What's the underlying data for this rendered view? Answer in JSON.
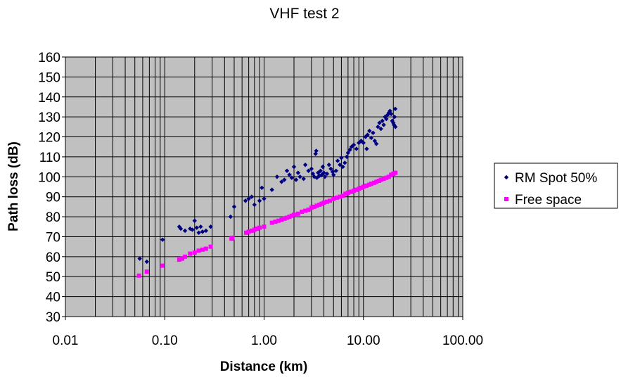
{
  "chart_data": {
    "type": "scatter",
    "title": "VHF test 2",
    "xlabel": "Distance (km)",
    "ylabel": "Path loss (dB)",
    "x_scale": "log",
    "xlim": [
      0.01,
      100
    ],
    "ylim": [
      30,
      160
    ],
    "x_ticks": [
      "0.01",
      "0.10",
      "1.00",
      "10.00",
      "100.00"
    ],
    "y_ticks": [
      "30",
      "40",
      "50",
      "60",
      "70",
      "80",
      "90",
      "100",
      "110",
      "120",
      "130",
      "140",
      "150",
      "160"
    ],
    "grid": true,
    "plot_background": "#c0c0c0",
    "legend_position": "right",
    "series": [
      {
        "name": "RM Spot 50%",
        "marker": "diamond",
        "color": "#000080",
        "points": [
          [
            0.056,
            59
          ],
          [
            0.066,
            57.5
          ],
          [
            0.095,
            68.5
          ],
          [
            0.14,
            75
          ],
          [
            0.145,
            74
          ],
          [
            0.16,
            73
          ],
          [
            0.18,
            74
          ],
          [
            0.19,
            73.5
          ],
          [
            0.2,
            78
          ],
          [
            0.21,
            74.5
          ],
          [
            0.22,
            72
          ],
          [
            0.23,
            75
          ],
          [
            0.24,
            72.5
          ],
          [
            0.26,
            73
          ],
          [
            0.29,
            75
          ],
          [
            0.46,
            80
          ],
          [
            0.5,
            85
          ],
          [
            0.65,
            88
          ],
          [
            0.7,
            89
          ],
          [
            0.75,
            90
          ],
          [
            0.8,
            86
          ],
          [
            0.9,
            88
          ],
          [
            0.95,
            94.5
          ],
          [
            1.0,
            89
          ],
          [
            1.2,
            93.5
          ],
          [
            1.35,
            100
          ],
          [
            1.5,
            97.5
          ],
          [
            1.6,
            98.5
          ],
          [
            1.7,
            103
          ],
          [
            1.8,
            101
          ],
          [
            1.9,
            99.5
          ],
          [
            2.0,
            105
          ],
          [
            2.1,
            98.5
          ],
          [
            2.2,
            102
          ],
          [
            2.3,
            100
          ],
          [
            2.5,
            99
          ],
          [
            2.6,
            106
          ],
          [
            2.8,
            103
          ],
          [
            3.0,
            104
          ],
          [
            3.1,
            101.5
          ],
          [
            3.2,
            100
          ],
          [
            3.3,
            111.5
          ],
          [
            3.35,
            113
          ],
          [
            3.4,
            99.5
          ],
          [
            3.5,
            102
          ],
          [
            3.6,
            100.5
          ],
          [
            3.7,
            103
          ],
          [
            3.8,
            101
          ],
          [
            3.9,
            105
          ],
          [
            4.0,
            102
          ],
          [
            4.1,
            100
          ],
          [
            4.3,
            101.5
          ],
          [
            4.5,
            106
          ],
          [
            4.7,
            104
          ],
          [
            4.9,
            102.5
          ],
          [
            5.0,
            101
          ],
          [
            5.3,
            103
          ],
          [
            5.5,
            108
          ],
          [
            5.8,
            106
          ],
          [
            6.0,
            109.5
          ],
          [
            6.2,
            105
          ],
          [
            6.5,
            107
          ],
          [
            6.8,
            110
          ],
          [
            7.0,
            112
          ],
          [
            7.3,
            113.5
          ],
          [
            7.6,
            115
          ],
          [
            8.0,
            116
          ],
          [
            8.5,
            114
          ],
          [
            9.0,
            117
          ],
          [
            9.5,
            118
          ],
          [
            10.0,
            117
          ],
          [
            10.5,
            120
          ],
          [
            10.8,
            114
          ],
          [
            11.0,
            121
          ],
          [
            11.5,
            123
          ],
          [
            12.0,
            119.5
          ],
          [
            12.5,
            122
          ],
          [
            13.0,
            118
          ],
          [
            13.5,
            116.5
          ],
          [
            14.0,
            125
          ],
          [
            14.5,
            127
          ],
          [
            15.0,
            124
          ],
          [
            15.5,
            128
          ],
          [
            16.0,
            126
          ],
          [
            16.5,
            130
          ],
          [
            17.0,
            129
          ],
          [
            17.5,
            131
          ],
          [
            18.0,
            132
          ],
          [
            18.5,
            133
          ],
          [
            19.0,
            131.5
          ],
          [
            19.5,
            128
          ],
          [
            20.0,
            127
          ],
          [
            20.3,
            126
          ],
          [
            20.6,
            130
          ],
          [
            20.9,
            134
          ],
          [
            21.0,
            125
          ]
        ]
      },
      {
        "name": "Free space",
        "marker": "square",
        "color": "#ff00ff",
        "points": [
          [
            0.055,
            50.5
          ],
          [
            0.066,
            52.5
          ],
          [
            0.095,
            55.5
          ],
          [
            0.14,
            58.5
          ],
          [
            0.15,
            59
          ],
          [
            0.16,
            60
          ],
          [
            0.18,
            61.5
          ],
          [
            0.2,
            62
          ],
          [
            0.22,
            63
          ],
          [
            0.24,
            63.5
          ],
          [
            0.26,
            64
          ],
          [
            0.29,
            65
          ],
          [
            0.47,
            69
          ],
          [
            0.48,
            69.5
          ],
          [
            0.66,
            72
          ],
          [
            0.7,
            72.5
          ],
          [
            0.75,
            73
          ],
          [
            0.8,
            73.5
          ],
          [
            0.85,
            74
          ],
          [
            0.9,
            74.5
          ],
          [
            1.0,
            75
          ],
          [
            1.2,
            77
          ],
          [
            1.3,
            77.5
          ],
          [
            1.4,
            78
          ],
          [
            1.5,
            78.5
          ],
          [
            1.6,
            79
          ],
          [
            1.7,
            79.5
          ],
          [
            1.8,
            80
          ],
          [
            1.9,
            80.5
          ],
          [
            2.0,
            81
          ],
          [
            2.2,
            81.5
          ],
          [
            2.4,
            82.5
          ],
          [
            2.6,
            83
          ],
          [
            2.8,
            83.5
          ],
          [
            3.0,
            84.5
          ],
          [
            3.2,
            85
          ],
          [
            3.4,
            85.5
          ],
          [
            3.6,
            86
          ],
          [
            3.8,
            86.5
          ],
          [
            4.0,
            87
          ],
          [
            4.3,
            87.5
          ],
          [
            4.6,
            88
          ],
          [
            5.0,
            89
          ],
          [
            5.4,
            89.5
          ],
          [
            5.8,
            90
          ],
          [
            6.2,
            90.5
          ],
          [
            6.6,
            91.5
          ],
          [
            7.0,
            92
          ],
          [
            7.5,
            92.5
          ],
          [
            8.0,
            93
          ],
          [
            8.5,
            93.5
          ],
          [
            9.0,
            94
          ],
          [
            9.5,
            94.5
          ],
          [
            10.0,
            95
          ],
          [
            10.7,
            95.5
          ],
          [
            11.4,
            96
          ],
          [
            12.0,
            96.5
          ],
          [
            12.8,
            97
          ],
          [
            13.5,
            97.5
          ],
          [
            14.3,
            98
          ],
          [
            15.0,
            98.5
          ],
          [
            16.0,
            99
          ],
          [
            17.0,
            99.5
          ],
          [
            18.0,
            100
          ],
          [
            19.0,
            101
          ],
          [
            20.0,
            101.5
          ],
          [
            21.0,
            102
          ]
        ]
      }
    ]
  }
}
